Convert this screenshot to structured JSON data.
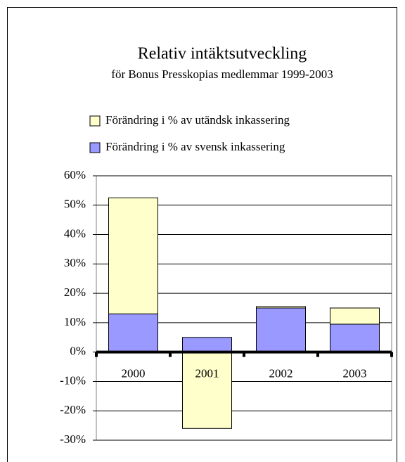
{
  "chart_data": {
    "type": "stacked_bar",
    "title": "Relativ intäktsutveckling",
    "subtitle": "för Bonus Presskopias medlemmar 1999-2003",
    "categories": [
      "2000",
      "2001",
      "2002",
      "2003"
    ],
    "series": [
      {
        "name": "Förändring i % av svensk inkassering",
        "color": "#9999ff",
        "values": [
          13,
          5,
          15,
          9.5
        ]
      },
      {
        "name": "Förändring i % av utändsk inkassering",
        "color": "#ffffcc",
        "values": [
          39.5,
          -26,
          0.5,
          5.5
        ]
      }
    ],
    "ylim": [
      -30,
      60
    ],
    "yticks": [
      {
        "value": -30,
        "label": "-30%"
      },
      {
        "value": -20,
        "label": "-20%"
      },
      {
        "value": -10,
        "label": "-10%"
      },
      {
        "value": 0,
        "label": "0%"
      },
      {
        "value": 10,
        "label": "10%"
      },
      {
        "value": 20,
        "label": "20%"
      },
      {
        "value": 30,
        "label": "30%"
      },
      {
        "value": 40,
        "label": "40%"
      },
      {
        "value": 50,
        "label": "50%"
      },
      {
        "value": 60,
        "label": "60%"
      }
    ],
    "grid": true,
    "legend": "top"
  }
}
